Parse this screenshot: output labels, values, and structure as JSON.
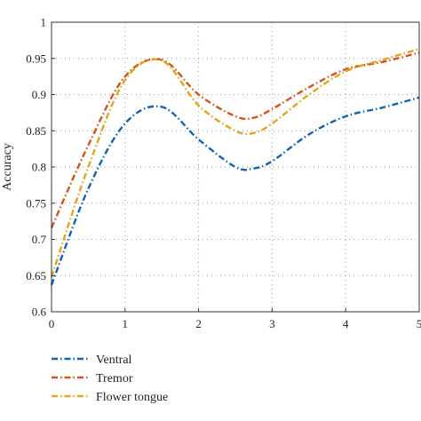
{
  "chart_data": {
    "type": "line",
    "title": "",
    "xlabel": "",
    "ylabel": "Accuracy",
    "xlim": [
      0,
      5
    ],
    "ylim": [
      0.6,
      1.0
    ],
    "x_ticks": [
      0,
      1,
      2,
      3,
      4,
      5
    ],
    "x_tick_labels": [
      "0",
      "1",
      "2",
      "3",
      "4",
      "5"
    ],
    "y_ticks": [
      0.6,
      0.65,
      0.7,
      0.75,
      0.8,
      0.85,
      0.9,
      0.95,
      1.0
    ],
    "y_tick_labels": [
      "0.6",
      "0.65",
      "0.7",
      "0.75",
      "0.8",
      "0.85",
      "0.9",
      "0.95",
      "1"
    ],
    "grid": true,
    "legend_position": "bottom-left",
    "series": [
      {
        "name": "Ventral",
        "color": "#0e63b3",
        "x": [
          0,
          0.5,
          1,
          1.5,
          2,
          2.5,
          2.75,
          3,
          3.5,
          4,
          4.5,
          5
        ],
        "y": [
          0.637,
          0.77,
          0.86,
          0.883,
          0.838,
          0.8,
          0.798,
          0.808,
          0.845,
          0.87,
          0.882,
          0.896
        ]
      },
      {
        "name": "Tremor",
        "color": "#d2541b",
        "x": [
          0,
          0.5,
          1,
          1.5,
          2,
          2.5,
          2.75,
          3,
          3.5,
          4,
          4.5,
          5
        ],
        "y": [
          0.716,
          0.83,
          0.925,
          0.948,
          0.9,
          0.87,
          0.868,
          0.88,
          0.91,
          0.935,
          0.945,
          0.958
        ]
      },
      {
        "name": "Flower tongue",
        "color": "#e3a51a",
        "x": [
          0,
          0.5,
          1,
          1.5,
          2,
          2.5,
          2.75,
          3,
          3.5,
          4,
          4.5,
          5
        ],
        "y": [
          0.648,
          0.8,
          0.92,
          0.947,
          0.885,
          0.85,
          0.847,
          0.86,
          0.9,
          0.932,
          0.948,
          0.963
        ]
      }
    ]
  }
}
